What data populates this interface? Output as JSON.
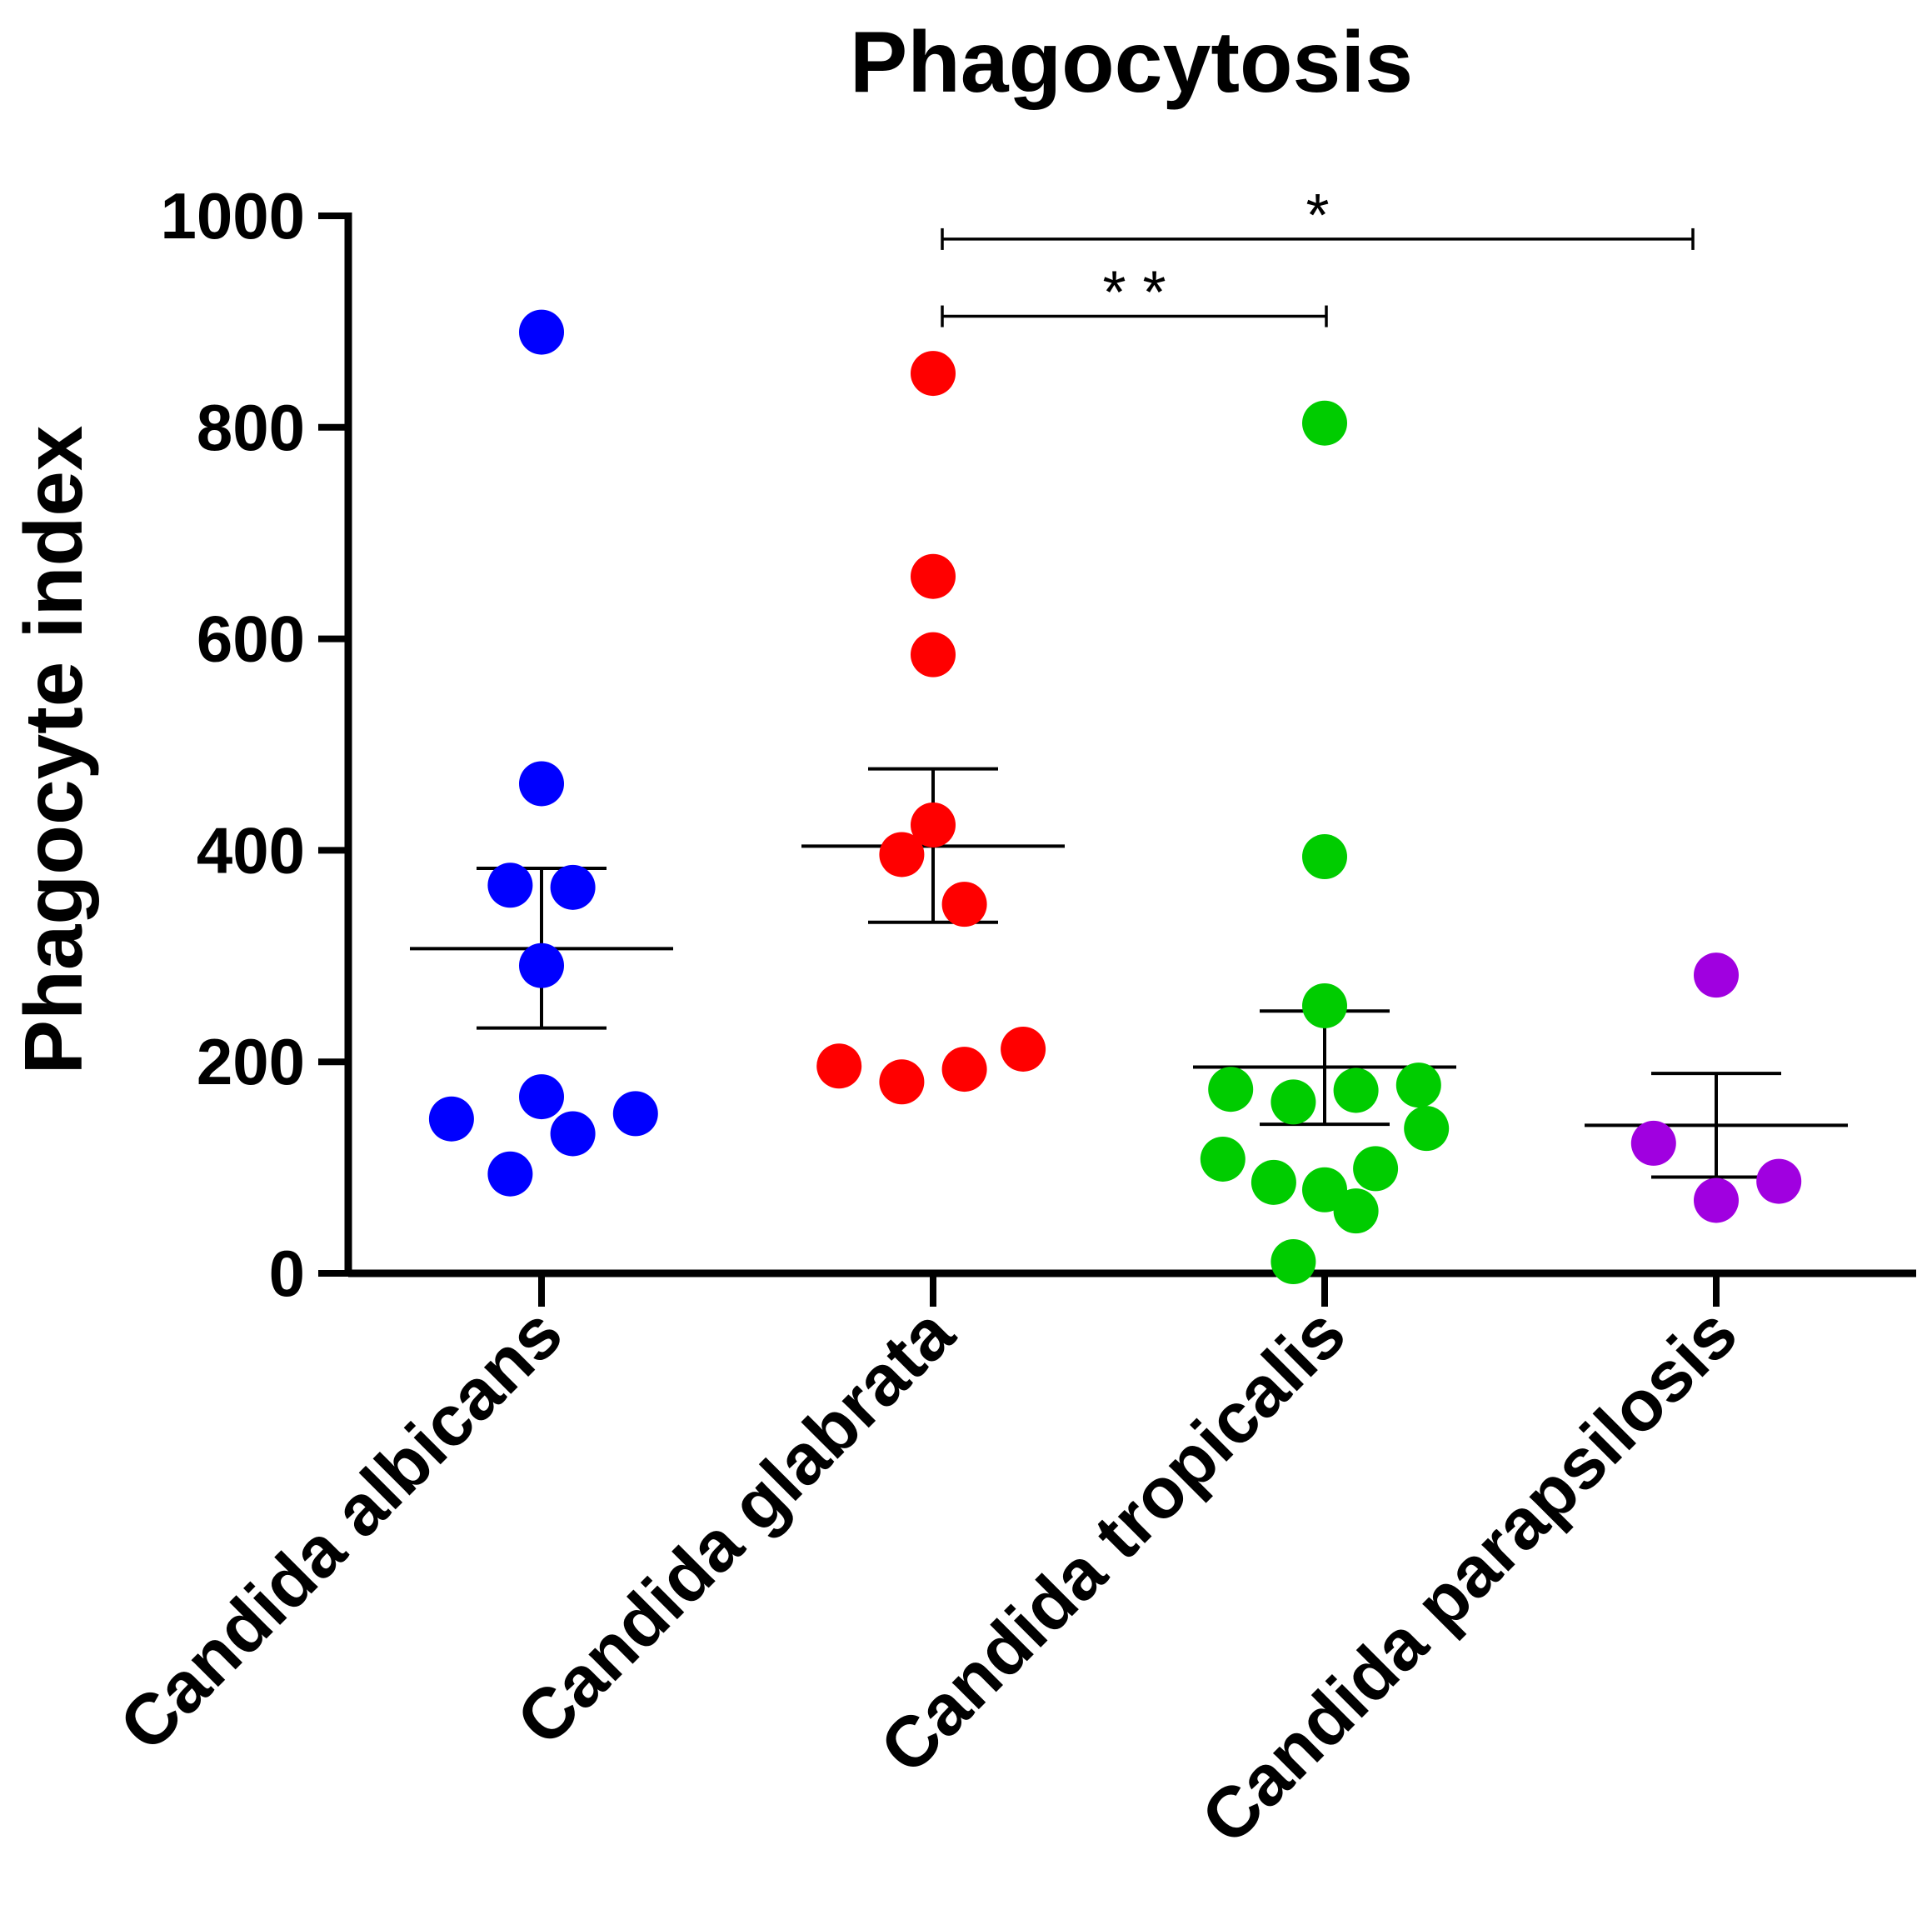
{
  "chart_data": {
    "type": "scatter",
    "title": "Phagocytosis",
    "xlabel": "",
    "ylabel": "Phagocyte index",
    "ylim": [
      0,
      1000
    ],
    "yticks": [
      "0",
      "200",
      "400",
      "600",
      "800",
      "1000"
    ],
    "grid": false,
    "categories": [
      "Candida albicans",
      "Candida glabrata",
      "Candida tropicalis",
      "Candida parapsilosis"
    ],
    "series": [
      {
        "name": "Candida albicans",
        "color": "#0000ff",
        "points": [
          {
            "offset": 0.0,
            "value": 890
          },
          {
            "offset": 0.0,
            "value": 463
          },
          {
            "offset": -0.08,
            "value": 367
          },
          {
            "offset": 0.08,
            "value": 365
          },
          {
            "offset": 0.0,
            "value": 291
          },
          {
            "offset": -0.23,
            "value": 146
          },
          {
            "offset": 0.0,
            "value": 167
          },
          {
            "offset": 0.08,
            "value": 132
          },
          {
            "offset": 0.24,
            "value": 151
          },
          {
            "offset": -0.08,
            "value": 94
          }
        ],
        "mean": 307,
        "sem_low": 232,
        "sem_high": 383
      },
      {
        "name": "Candida glabrata",
        "color": "#ff0000",
        "points": [
          {
            "offset": 0.0,
            "value": 851
          },
          {
            "offset": 0.0,
            "value": 659
          },
          {
            "offset": 0.0,
            "value": 585
          },
          {
            "offset": 0.0,
            "value": 424
          },
          {
            "offset": -0.08,
            "value": 396
          },
          {
            "offset": 0.08,
            "value": 349
          },
          {
            "offset": -0.24,
            "value": 196
          },
          {
            "offset": -0.08,
            "value": 181
          },
          {
            "offset": 0.08,
            "value": 193
          },
          {
            "offset": 0.23,
            "value": 212
          }
        ],
        "mean": 404,
        "sem_low": 332,
        "sem_high": 477
      },
      {
        "name": "Candida tropicalis",
        "color": "#00cc00",
        "points": [
          {
            "offset": 0.0,
            "value": 804
          },
          {
            "offset": 0.0,
            "value": 394
          },
          {
            "offset": 0.0,
            "value": 253
          },
          {
            "offset": -0.24,
            "value": 174
          },
          {
            "offset": -0.08,
            "value": 162
          },
          {
            "offset": 0.08,
            "value": 173
          },
          {
            "offset": 0.24,
            "value": 178
          },
          {
            "offset": 0.26,
            "value": 137
          },
          {
            "offset": -0.26,
            "value": 108
          },
          {
            "offset": 0.13,
            "value": 99
          },
          {
            "offset": -0.13,
            "value": 86
          },
          {
            "offset": 0.0,
            "value": 79
          },
          {
            "offset": 0.08,
            "value": 59
          },
          {
            "offset": -0.08,
            "value": 11
          }
        ],
        "mean": 195,
        "sem_low": 141,
        "sem_high": 248
      },
      {
        "name": "Candida parapsilosis",
        "color": "#a000e0",
        "points": [
          {
            "offset": 0.0,
            "value": 282
          },
          {
            "offset": -0.16,
            "value": 123
          },
          {
            "offset": 0.16,
            "value": 87
          },
          {
            "offset": -0.0,
            "value": 69
          }
        ],
        "mean": 140,
        "sem_low": 91,
        "sem_high": 189
      }
    ],
    "significance": [
      {
        "from": 1,
        "to": 2,
        "label": "* *",
        "y": 905
      },
      {
        "from": 1,
        "to": 3,
        "label": "*",
        "y": 978
      }
    ]
  }
}
